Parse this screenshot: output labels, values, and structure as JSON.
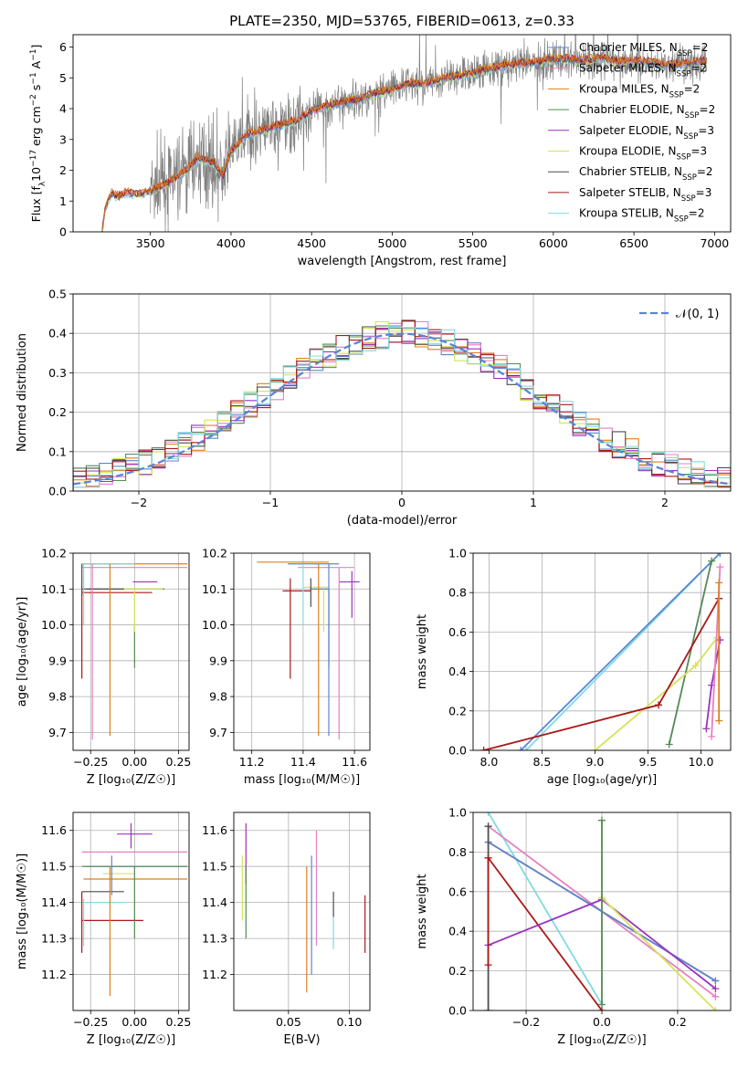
{
  "title": "PLATE=2350, MJD=53765, FIBERID=0613, z=0.33",
  "colors": {
    "Chabrier MILES": "#5a86d6",
    "Salpeter MILES": "#e87fbf",
    "Kroupa MILES": "#de7f1c",
    "Chabrier ELODIE": "#548a54",
    "Salpeter ELODIE": "#9a32bd",
    "Kroupa ELODIE": "#d5e35a",
    "Chabrier STELIB": "#4d4d4d",
    "Salpeter STELIB": "#ab1818",
    "Kroupa STELIB": "#80dbe0",
    "data": "#808080",
    "normal": "#5a86d6"
  },
  "chart_data": [
    {
      "id": "spectrum",
      "type": "line",
      "title": "PLATE=2350, MJD=53765, FIBERID=0613, z=0.33",
      "xlabel": "wavelength [Angstrom, rest frame]",
      "ylabel_parts": [
        "Flux [f",
        "λ",
        "10",
        "−17",
        " erg cm",
        "−2",
        " s",
        "−1",
        " A",
        "−1",
        "]"
      ],
      "xlim": [
        3020,
        7100
      ],
      "ylim": [
        0,
        6.4
      ],
      "xticks": [
        3500,
        4000,
        4500,
        5000,
        5500,
        6000,
        6500,
        7000
      ],
      "yticks": [
        0,
        1,
        2,
        3,
        4,
        5,
        6
      ],
      "legend_position": "right",
      "legend": [
        {
          "model": "Chabrier MILES",
          "nssp": "2"
        },
        {
          "model": "Salpeter MILES",
          "nssp": "2"
        },
        {
          "model": "Kroupa MILES",
          "nssp": "2"
        },
        {
          "model": "Chabrier ELODIE",
          "nssp": "2"
        },
        {
          "model": "Salpeter ELODIE",
          "nssp": "3"
        },
        {
          "model": "Kroupa ELODIE",
          "nssp": "3"
        },
        {
          "model": "Chabrier STELIB",
          "nssp": "2"
        },
        {
          "model": "Salpeter STELIB",
          "nssp": "3"
        },
        {
          "model": "Kroupa STELIB",
          "nssp": "2"
        }
      ],
      "continuum": [
        [
          3200,
          0.0
        ],
        [
          3220,
          0.8
        ],
        [
          3260,
          1.25
        ],
        [
          3300,
          1.15
        ],
        [
          3350,
          1.28
        ],
        [
          3420,
          1.22
        ],
        [
          3500,
          1.3
        ],
        [
          3600,
          1.55
        ],
        [
          3700,
          1.9
        ],
        [
          3800,
          2.4
        ],
        [
          3900,
          2.2
        ],
        [
          3950,
          1.8
        ],
        [
          4000,
          2.6
        ],
        [
          4100,
          3.15
        ],
        [
          4200,
          3.3
        ],
        [
          4300,
          3.45
        ],
        [
          4400,
          3.6
        ],
        [
          4500,
          3.9
        ],
        [
          4600,
          4.1
        ],
        [
          4700,
          4.2
        ],
        [
          4800,
          4.3
        ],
        [
          4900,
          4.5
        ],
        [
          5000,
          4.6
        ],
        [
          5100,
          4.8
        ],
        [
          5200,
          4.8
        ],
        [
          5300,
          4.95
        ],
        [
          5400,
          5.05
        ],
        [
          5500,
          5.15
        ],
        [
          5600,
          5.3
        ],
        [
          5700,
          5.4
        ],
        [
          5800,
          5.45
        ],
        [
          5900,
          5.5
        ],
        [
          6000,
          5.6
        ],
        [
          6100,
          5.6
        ],
        [
          6200,
          5.55
        ],
        [
          6300,
          5.65
        ],
        [
          6400,
          5.5
        ],
        [
          6500,
          5.55
        ],
        [
          6600,
          5.5
        ],
        [
          6700,
          5.4
        ],
        [
          6800,
          5.45
        ],
        [
          6900,
          5.5
        ]
      ],
      "data_range": [
        3500,
        6950
      ]
    },
    {
      "id": "residuals",
      "type": "histogram",
      "xlabel": "(data-model)/error",
      "ylabel": "Normed distribution",
      "xlim": [
        -2.5,
        2.5
      ],
      "ylim": [
        0,
        0.5
      ],
      "xticks": [
        -2,
        -1,
        0,
        1,
        2
      ],
      "yticks": [
        0.0,
        0.1,
        0.2,
        0.3,
        0.4,
        0.5
      ],
      "legend_label": "𝒩(0, 1)",
      "legend_position": "top-right",
      "bin_width": 0.1,
      "grid": true
    },
    {
      "id": "age-vs-z",
      "type": "errorbar",
      "xlabel": "Z [log₁₀(Z/Z☉)]",
      "ylabel": "age  [log₁₀(age/yr)]",
      "xlim": [
        -0.35,
        0.31
      ],
      "ylim": [
        9.65,
        10.2
      ],
      "xticks": [
        -0.25,
        0.0,
        0.25
      ],
      "yticks": [
        9.7,
        9.8,
        9.9,
        10.0,
        10.1,
        10.2
      ],
      "points": [
        {
          "model": "Chabrier MILES",
          "x": -0.2,
          "xerr": 0.1,
          "y": 10.17,
          "yerr": 0.0
        },
        {
          "model": "Salpeter MILES",
          "x": 0.0,
          "xerr": 0.3,
          "y": 10.16,
          "yerr": 0.0
        },
        {
          "model": "Kroupa MILES",
          "x": 0.0,
          "xerr": 0.3,
          "y": 10.17,
          "yerr": 0.0
        },
        {
          "model": "Chabrier ELODIE",
          "x": -0.05,
          "xerr": 0.22,
          "y": 10.1,
          "yerr": 0.0
        },
        {
          "model": "Salpeter ELODIE",
          "x": 0.06,
          "xerr": 0.07,
          "y": 10.12,
          "yerr": 0.0
        },
        {
          "model": "Kroupa ELODIE",
          "x": -0.02,
          "xerr": 0.18,
          "y": 10.1,
          "yerr": 0.0
        },
        {
          "model": "Chabrier STELIB",
          "x": -0.18,
          "xerr": 0.12,
          "y": 10.1,
          "yerr": 0.0
        },
        {
          "model": "Salpeter STELIB",
          "x": -0.1,
          "xerr": 0.2,
          "y": 10.09,
          "yerr": 0.0
        },
        {
          "model": "Kroupa STELIB",
          "x": -0.15,
          "xerr": 0.15,
          "y": 10.17,
          "yerr": 0.0
        }
      ],
      "vlines": [
        {
          "model": "Salpeter STELIB",
          "x": -0.3,
          "y0": 9.85,
          "y1": 10.1
        },
        {
          "model": "Kroupa STELIB",
          "x": -0.29,
          "y0": 10.0,
          "y1": 10.17
        },
        {
          "model": "Salpeter MILES",
          "x": -0.24,
          "y0": 9.68,
          "y1": 10.17
        },
        {
          "model": "Kroupa MILES",
          "x": -0.14,
          "y0": 9.69,
          "y1": 10.17
        },
        {
          "model": "Chabrier ELODIE",
          "x": 0.0,
          "y0": 9.88,
          "y1": 10.0
        },
        {
          "model": "Kroupa ELODIE",
          "x": 0.0,
          "y0": 9.98,
          "y1": 10.1
        },
        {
          "model": "Chabrier STELIB",
          "x": -0.3,
          "y0": 10.08,
          "y1": 10.17
        }
      ]
    },
    {
      "id": "age-vs-mass",
      "type": "errorbar",
      "xlabel": "mass [log₁₀(M/M☉)]",
      "ylabel": "",
      "xlim": [
        11.13,
        11.66
      ],
      "ylim": [
        9.65,
        10.2
      ],
      "xticks": [
        11.2,
        11.4,
        11.6
      ],
      "yticks": [
        9.7,
        9.8,
        9.9,
        10.0,
        10.1,
        10.2
      ],
      "vlines": [
        {
          "model": "Salpeter STELIB",
          "x": 11.35,
          "y0": 9.85,
          "y1": 10.13
        },
        {
          "model": "Chabrier STELIB",
          "x": 11.43,
          "y0": 10.05,
          "y1": 10.13
        },
        {
          "model": "Kroupa STELIB",
          "x": 11.4,
          "y0": 10.0,
          "y1": 10.17
        },
        {
          "model": "Kroupa MILES",
          "x": 11.46,
          "y0": 9.69,
          "y1": 10.17
        },
        {
          "model": "Kroupa ELODIE",
          "x": 11.48,
          "y0": 9.98,
          "y1": 10.1
        },
        {
          "model": "Chabrier ELODIE",
          "x": 11.5,
          "y0": 9.88,
          "y1": 10.1
        },
        {
          "model": "Chabrier MILES",
          "x": 11.5,
          "y0": 9.69,
          "y1": 10.17
        },
        {
          "model": "Salpeter MILES",
          "x": 11.54,
          "y0": 9.68,
          "y1": 10.16
        },
        {
          "model": "Salpeter ELODIE",
          "x": 11.59,
          "y0": 10.02,
          "y1": 10.15
        }
      ],
      "hlines": [
        {
          "model": "Chabrier MILES",
          "y": 10.17,
          "x0": 11.34,
          "x1": 11.54
        },
        {
          "model": "Kroupa MILES",
          "y": 10.175,
          "x0": 11.22,
          "x1": 11.5
        },
        {
          "model": "Salpeter MILES",
          "y": 10.16,
          "x0": 11.38,
          "x1": 11.6
        },
        {
          "model": "Salpeter STELIB",
          "y": 10.095,
          "x0": 11.32,
          "x1": 11.43
        },
        {
          "model": "Salpeter ELODIE",
          "y": 10.12,
          "x0": 11.54,
          "x1": 11.62
        },
        {
          "model": "Chabrier ELODIE",
          "y": 10.1,
          "x0": 11.43,
          "x1": 11.5
        },
        {
          "model": "Kroupa ELODIE",
          "y": 10.105,
          "x0": 11.4,
          "x1": 11.5
        }
      ]
    },
    {
      "id": "weight-vs-age",
      "type": "line",
      "xlabel": "age  [log₁₀(age/yr)]",
      "ylabel": "mass weight",
      "xlim": [
        7.85,
        10.28
      ],
      "ylim": [
        0,
        1
      ],
      "xticks": [
        8.0,
        8.5,
        9.0,
        9.5,
        10.0
      ],
      "yticks": [
        0.0,
        0.2,
        0.4,
        0.6,
        0.8,
        1.0
      ],
      "series": [
        {
          "model": "Kroupa STELIB",
          "x": [
            8.35,
            10.18
          ],
          "y": [
            0.0,
            1.0
          ]
        },
        {
          "model": "Chabrier MILES",
          "x": [
            8.3,
            10.18
          ],
          "y": [
            0.0,
            1.0
          ]
        },
        {
          "model": "Chabrier ELODIE",
          "x": [
            9.7,
            10.1
          ],
          "y": [
            0.03,
            0.96
          ]
        },
        {
          "model": "Kroupa ELODIE",
          "x": [
            9.0,
            9.95,
            10.15
          ],
          "y": [
            0.0,
            0.43,
            0.57
          ]
        },
        {
          "model": "Salpeter STELIB",
          "x": [
            7.95,
            9.6,
            10.17
          ],
          "y": [
            0.0,
            0.23,
            0.77
          ]
        },
        {
          "model": "Salpeter ELODIE",
          "x": [
            10.05,
            10.1,
            10.18
          ],
          "y": [
            0.11,
            0.33,
            0.56
          ]
        },
        {
          "model": "Salpeter MILES",
          "x": [
            10.1,
            10.18
          ],
          "y": [
            0.07,
            0.93
          ]
        },
        {
          "model": "Kroupa MILES",
          "x": [
            10.17,
            10.17
          ],
          "y": [
            0.15,
            0.85
          ]
        }
      ]
    },
    {
      "id": "mass-vs-z",
      "type": "errorbar",
      "xlabel": "Z [log₁₀(Z/Z☉)]",
      "ylabel": "mass [log₁₀(M/M☉)]",
      "xlim": [
        -0.35,
        0.31
      ],
      "ylim": [
        11.1,
        11.65
      ],
      "xticks": [
        -0.25,
        0.0,
        0.25
      ],
      "yticks": [
        11.2,
        11.3,
        11.4,
        11.5,
        11.6
      ],
      "hlines": [
        {
          "model": "Salpeter MILES",
          "y": 11.54,
          "x0": -0.3,
          "x1": 0.3
        },
        {
          "model": "Chabrier MILES",
          "y": 11.5,
          "x0": -0.28,
          "x1": 0.3
        },
        {
          "model": "Kroupa ELODIE",
          "y": 11.48,
          "x0": -0.18,
          "x1": 0.0
        },
        {
          "model": "Kroupa MILES",
          "y": 11.465,
          "x0": -0.29,
          "x1": 0.3
        },
        {
          "model": "Salpeter ELODIE",
          "y": 11.59,
          "x0": -0.1,
          "x1": 0.1
        },
        {
          "model": "Salpeter STELIB",
          "y": 11.35,
          "x0": -0.3,
          "x1": 0.05
        },
        {
          "model": "Chabrier STELIB",
          "y": 11.43,
          "x0": -0.3,
          "x1": -0.06
        },
        {
          "model": "Kroupa STELIB",
          "y": 11.4,
          "x0": -0.28,
          "x1": -0.06
        },
        {
          "model": "Chabrier ELODIE",
          "y": 11.5,
          "x0": -0.3,
          "x1": 0.3
        }
      ],
      "vlines": [
        {
          "model": "Kroupa MILES",
          "x": -0.14,
          "y0": 11.14,
          "y1": 11.5
        },
        {
          "model": "Chabrier MILES",
          "x": -0.13,
          "y0": 11.42,
          "y1": 11.53
        },
        {
          "model": "Salpeter STELIB",
          "x": -0.3,
          "y0": 11.26,
          "y1": 11.43
        },
        {
          "model": "Salpeter ELODIE",
          "x": -0.02,
          "y0": 11.55,
          "y1": 11.62
        },
        {
          "model": "Chabrier ELODIE",
          "x": 0.0,
          "y0": 11.3,
          "y1": 11.5
        },
        {
          "model": "Kroupa STELIB",
          "x": -0.29,
          "y0": 11.28,
          "y1": 11.41
        }
      ]
    },
    {
      "id": "mass-vs-ebv",
      "type": "errorbar",
      "xlabel": "E(B-V)",
      "ylabel": "",
      "xlim": [
        0.005,
        0.117
      ],
      "ylim": [
        11.1,
        11.65
      ],
      "xticks": [
        0.05,
        0.1
      ],
      "yticks": [
        11.2,
        11.3,
        11.4,
        11.5,
        11.6
      ],
      "vlines": [
        {
          "model": "Kroupa ELODIE",
          "x": 0.012,
          "y0": 11.35,
          "y1": 11.53
        },
        {
          "model": "Salpeter ELODIE",
          "x": 0.015,
          "y0": 11.45,
          "y1": 11.62
        },
        {
          "model": "Chabrier ELODIE",
          "x": 0.015,
          "y0": 11.3,
          "y1": 11.5
        },
        {
          "model": "Kroupa MILES",
          "x": 0.065,
          "y0": 11.15,
          "y1": 11.5
        },
        {
          "model": "Chabrier MILES",
          "x": 0.069,
          "y0": 11.2,
          "y1": 11.53
        },
        {
          "model": "Salpeter MILES",
          "x": 0.073,
          "y0": 11.28,
          "y1": 11.6
        },
        {
          "model": "Kroupa STELIB",
          "x": 0.087,
          "y0": 11.27,
          "y1": 11.39
        },
        {
          "model": "Chabrier STELIB",
          "x": 0.087,
          "y0": 11.36,
          "y1": 11.43
        },
        {
          "model": "Salpeter STELIB",
          "x": 0.113,
          "y0": 11.26,
          "y1": 11.42
        }
      ]
    },
    {
      "id": "weight-vs-z",
      "type": "line",
      "xlabel": "Z [log₁₀(Z/Z☉)]",
      "ylabel": "mass weight",
      "xlim": [
        -0.34,
        0.34
      ],
      "ylim": [
        0,
        1
      ],
      "xticks": [
        -0.2,
        0.0,
        0.2
      ],
      "yticks": [
        0.0,
        0.2,
        0.4,
        0.6,
        0.8,
        1.0
      ],
      "series": [
        {
          "model": "Kroupa STELIB",
          "x": [
            -0.3,
            0.0
          ],
          "y": [
            1.0,
            0.03
          ]
        },
        {
          "model": "Salpeter MILES",
          "x": [
            -0.3,
            0.3
          ],
          "y": [
            0.93,
            0.07
          ]
        },
        {
          "model": "Kroupa MILES",
          "x": [
            -0.3,
            0.3
          ],
          "y": [
            0.85,
            0.15
          ]
        },
        {
          "model": "Chabrier MILES",
          "x": [
            -0.3,
            0.3
          ],
          "y": [
            0.85,
            0.15
          ]
        },
        {
          "model": "Salpeter STELIB",
          "x": [
            -0.3,
            0.0
          ],
          "y": [
            0.77,
            0.0
          ]
        },
        {
          "model": "Salpeter ELODIE",
          "x": [
            -0.3,
            0.0,
            0.3
          ],
          "y": [
            0.33,
            0.56,
            0.11
          ]
        },
        {
          "model": "Kroupa ELODIE",
          "x": [
            0.0,
            0.3
          ],
          "y": [
            0.57,
            0.0
          ]
        },
        {
          "model": "Chabrier ELODIE",
          "x": [
            0.0,
            0.0
          ],
          "y": [
            0.03,
            0.96
          ]
        },
        {
          "model": "Chabrier STELIB",
          "x": [
            -0.3,
            -0.3
          ],
          "y": [
            0.0,
            0.93
          ]
        },
        {
          "model": "Salpeter STELIB",
          "x": [
            -0.3,
            -0.3
          ],
          "y": [
            0.23,
            0.77
          ]
        }
      ]
    }
  ]
}
